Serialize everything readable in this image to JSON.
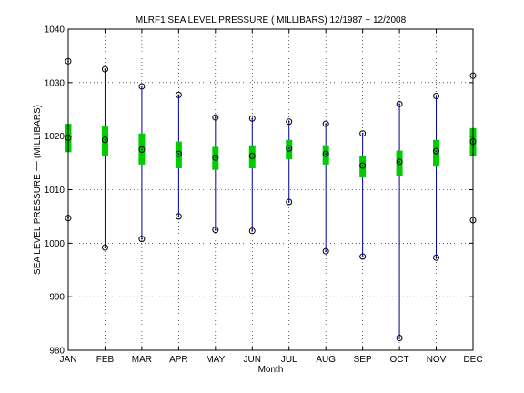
{
  "chart_data": {
    "type": "box",
    "title": "MLRF1  SEA LEVEL PRESSURE ( MILLIBARS) 12/1987 − 12/2008",
    "xlabel": "Month",
    "ylabel": "SEA LEVEL PRESSURE −− (MILLIBARS)",
    "categories": [
      "JAN",
      "FEB",
      "MAR",
      "APR",
      "MAY",
      "JUN",
      "JUL",
      "AUG",
      "SEP",
      "OCT",
      "NOV",
      "DEC"
    ],
    "ylim": [
      980,
      1040
    ],
    "yticks": [
      980,
      990,
      1000,
      1010,
      1020,
      1030,
      1040
    ],
    "grid": true,
    "colors": {
      "whisker": "#0000a0",
      "box": "#00cc00",
      "marker": "#000000"
    },
    "max": [
      1034.0,
      1032.5,
      1029.3,
      1027.7,
      1023.5,
      1023.3,
      1022.7,
      1022.3,
      1020.5,
      1026.0,
      1027.5,
      1031.3
    ],
    "q3": [
      1022.3,
      1021.8,
      1020.5,
      1019.0,
      1018.0,
      1018.3,
      1019.3,
      1018.3,
      1016.3,
      1017.3,
      1019.3,
      1021.5
    ],
    "mean": [
      1019.7,
      1019.3,
      1017.5,
      1016.7,
      1016.0,
      1016.3,
      1017.7,
      1016.7,
      1014.5,
      1015.2,
      1017.2,
      1019.0
    ],
    "q1": [
      1017.0,
      1016.3,
      1014.7,
      1014.0,
      1013.7,
      1014.0,
      1015.7,
      1014.7,
      1012.3,
      1012.5,
      1014.3,
      1016.3
    ],
    "min": [
      1004.7,
      999.2,
      1000.8,
      1005.0,
      1002.5,
      1002.3,
      1007.7,
      998.5,
      997.5,
      982.3,
      997.3,
      1004.3
    ]
  }
}
